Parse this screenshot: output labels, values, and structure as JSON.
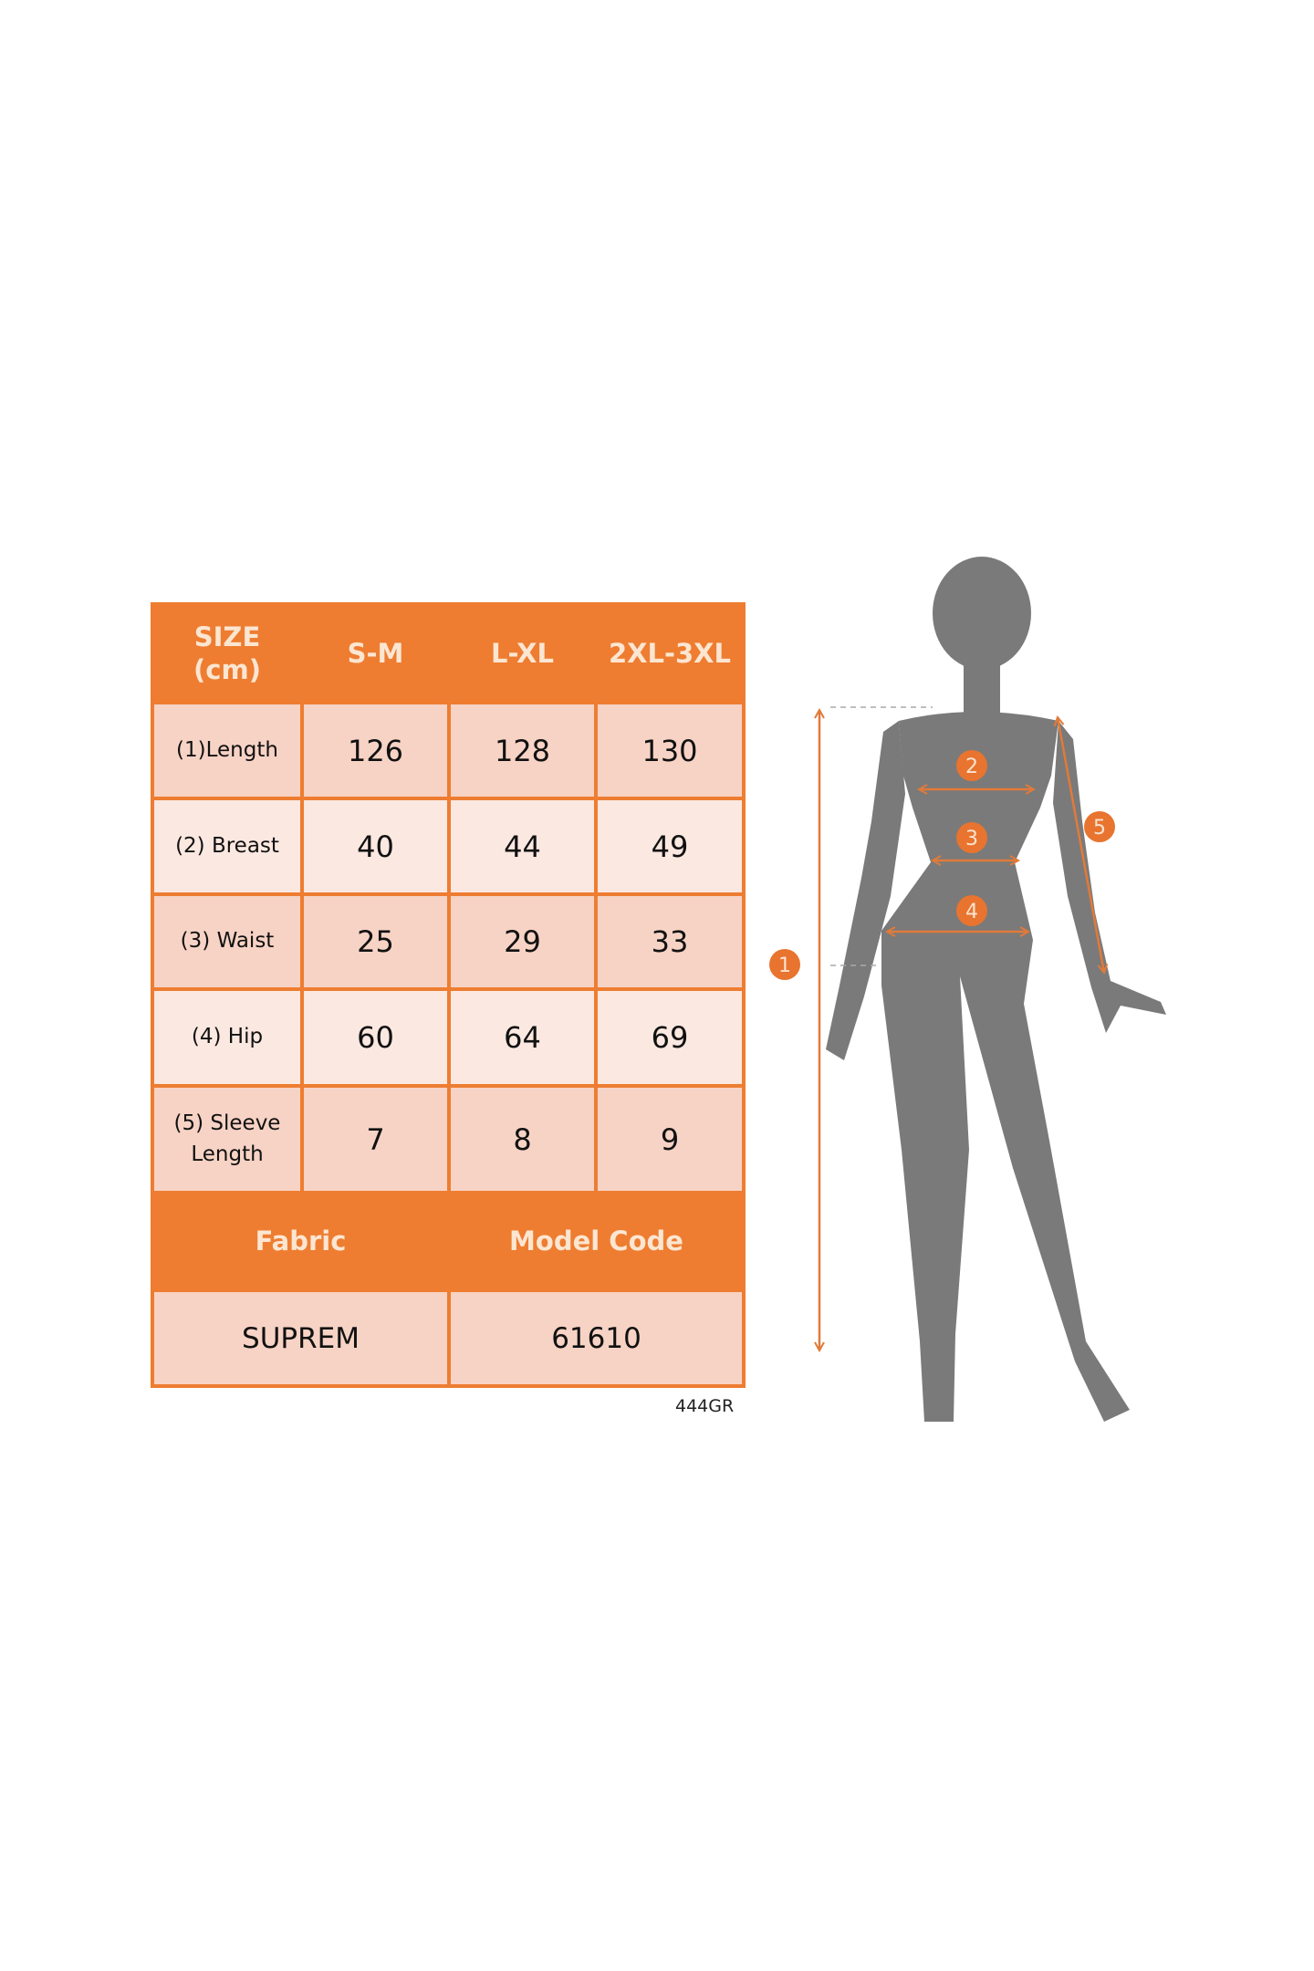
{
  "size_table": {
    "header": {
      "size_label": "SIZE",
      "unit_label": "(cm)",
      "sizes": [
        "S-M",
        "L-XL",
        "2XL-3XL"
      ]
    },
    "rows": [
      {
        "label": "(1)Length",
        "values": [
          "126",
          "128",
          "130"
        ]
      },
      {
        "label": "(2) Breast",
        "values": [
          "40",
          "44",
          "49"
        ]
      },
      {
        "label": "(3) Waist",
        "values": [
          "25",
          "29",
          "33"
        ]
      },
      {
        "label": "(4) Hip",
        "values": [
          "60",
          "64",
          "69"
        ]
      },
      {
        "label_line1": "(5) Sleeve",
        "label_line2": "Length",
        "values": [
          "7",
          "8",
          "9"
        ]
      }
    ],
    "footer": {
      "fabric_label": "Fabric",
      "model_code_label": "Model Code",
      "fabric_value": "SUPREM",
      "model_code_value": "61610"
    }
  },
  "code_note": "444GR",
  "figure": {
    "markers": [
      "1",
      "2",
      "3",
      "4",
      "5"
    ]
  },
  "colors": {
    "accent": "#EE7D31",
    "cell_dark": "#F7D3C5",
    "cell_light": "#FBE8E1",
    "silhouette": "#7A7A7A"
  }
}
